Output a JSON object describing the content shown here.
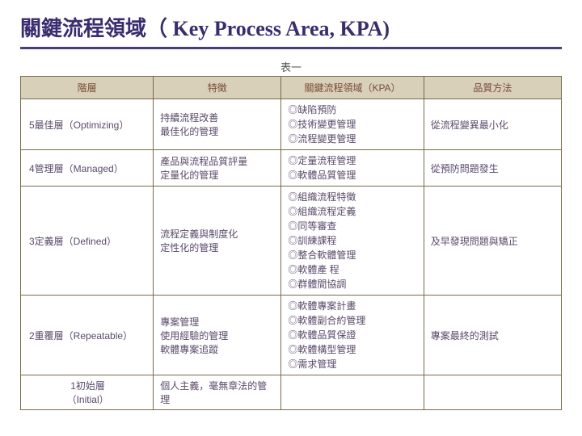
{
  "title": "關鍵流程領域（ Key Process Area, KPA)",
  "caption": "表一",
  "headers": {
    "level": "階層",
    "feature": "特徵",
    "kpa": "關鍵流程領域（KPA）",
    "quality": "品質方法"
  },
  "rows": [
    {
      "level": "5最佳層（Optimizing）",
      "feature": "持續流程改善\n最佳化的管理",
      "kpa": "◎缺陷預防\n◎技術變更管理\n◎流程變更管理",
      "quality": "從流程變異最小化"
    },
    {
      "level": "4管理層（Managed）",
      "feature": "產品與流程品質評量\n定量化的管理",
      "kpa": "◎定量流程管理\n◎軟體品質管理",
      "quality": "從預防問題發生"
    },
    {
      "level": "3定義層（Defined）",
      "feature": "流程定義與制度化\n定性化的管理",
      "kpa": "◎組織流程特徵\n◎組織流程定義\n◎同等審查\n◎訓練課程\n◎整合軟體管理\n◎軟體產 程\n◎群體間協調",
      "quality": "及早發現問題與矯正"
    },
    {
      "level": "2重覆層（Repeatable）",
      "feature": "專案管理\n使用經驗的管理\n軟體專案追蹤",
      "kpa": "◎軟體專案計畫\n◎軟體副合約管理\n◎軟體品質保證\n◎軟體構型管理\n◎需求管理",
      "quality": "專案最終的測試"
    },
    {
      "level": "1初始層\n（Initial）",
      "feature": "個人主義，毫無章法的管理",
      "kpa": "",
      "quality": ""
    }
  ],
  "colors": {
    "title_color": "#3a2c6e",
    "title_underline": "#4a3c7e",
    "header_bg": "#d8d0b8",
    "header_text": "#7a4a3a",
    "cell_text": "#5a4a6a",
    "border": "#7a6a4a",
    "background": "#ffffff"
  },
  "typography": {
    "title_fontsize": 26,
    "header_fontsize": 12,
    "cell_fontsize": 12
  }
}
